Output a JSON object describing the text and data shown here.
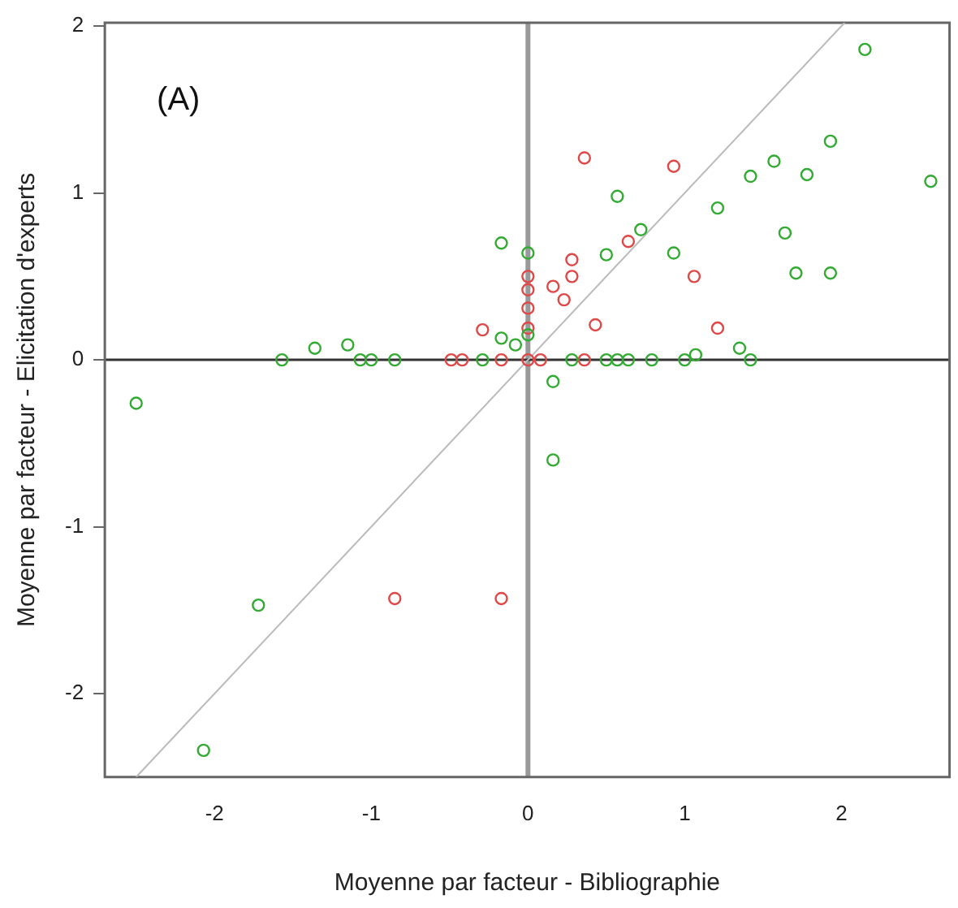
{
  "chart_data": {
    "type": "scatter",
    "xlabel": "Moyenne par facteur - Bibliographie",
    "ylabel": "Moyenne par facteur - Elicitation d'experts",
    "annotations": [
      "(A)"
    ],
    "xlim": [
      -2.7,
      2.69
    ],
    "ylim": [
      -2.5,
      2.02
    ],
    "xticks": [
      -2,
      -1,
      0,
      1,
      2
    ],
    "yticks": [
      -2,
      -1,
      0,
      1,
      2
    ],
    "grid": false,
    "legend": false,
    "marker": "circle",
    "ref_lines": [
      {
        "axis": "x",
        "value": 0,
        "color": "#999999"
      },
      {
        "axis": "y",
        "value": 0,
        "color": "#333333"
      }
    ],
    "series": [
      {
        "color": "#33aa33",
        "x": [
          2.15,
          1.93,
          1.57,
          1.42,
          1.78,
          2.57,
          0.57,
          1.21,
          1.64,
          0.72,
          -0.17,
          0,
          0.5,
          0.93,
          1.71,
          1.93,
          -0.17,
          -0.08,
          0,
          -1.36,
          -1.15,
          -1.57,
          -1.07,
          -1.0,
          -0.85,
          -0.29,
          0.28,
          0.5,
          0.57,
          0.64,
          0.79,
          1.0,
          1.07,
          1.35,
          1.42,
          0.16,
          0.16,
          -2.5,
          -1.72,
          -2.07
        ],
        "values": [
          1.86,
          1.31,
          1.19,
          1.1,
          1.11,
          1.07,
          0.98,
          0.91,
          0.76,
          0.78,
          0.7,
          0.64,
          0.63,
          0.64,
          0.52,
          0.52,
          0.13,
          0.09,
          0.15,
          0.07,
          0.09,
          0,
          0,
          0,
          0,
          0,
          0,
          0,
          0,
          0,
          0,
          0,
          0.03,
          0.07,
          0,
          -0.13,
          -0.6,
          -0.26,
          -1.47,
          -2.34
        ]
      },
      {
        "color": "#e04848",
        "x": [
          0.36,
          0.93,
          0.64,
          0.28,
          0.28,
          1.06,
          0.16,
          0.23,
          0,
          0,
          0,
          0,
          -0.29,
          0.43,
          1.21,
          -0.49,
          -0.42,
          -0.17,
          0,
          0.08,
          0.36,
          -0.85,
          -0.17
        ],
        "values": [
          1.21,
          1.16,
          0.71,
          0.6,
          0.5,
          0.5,
          0.44,
          0.36,
          0.5,
          0.42,
          0.31,
          0.19,
          0.18,
          0.21,
          0.19,
          0,
          0,
          0,
          0,
          0,
          0,
          -1.43,
          -1.43
        ]
      },
      {
        "type": "line",
        "color": "#bbbbbb",
        "x": [
          -2.5,
          2.02
        ],
        "values": [
          -2.5,
          2.02
        ],
        "marker": "none"
      }
    ]
  }
}
